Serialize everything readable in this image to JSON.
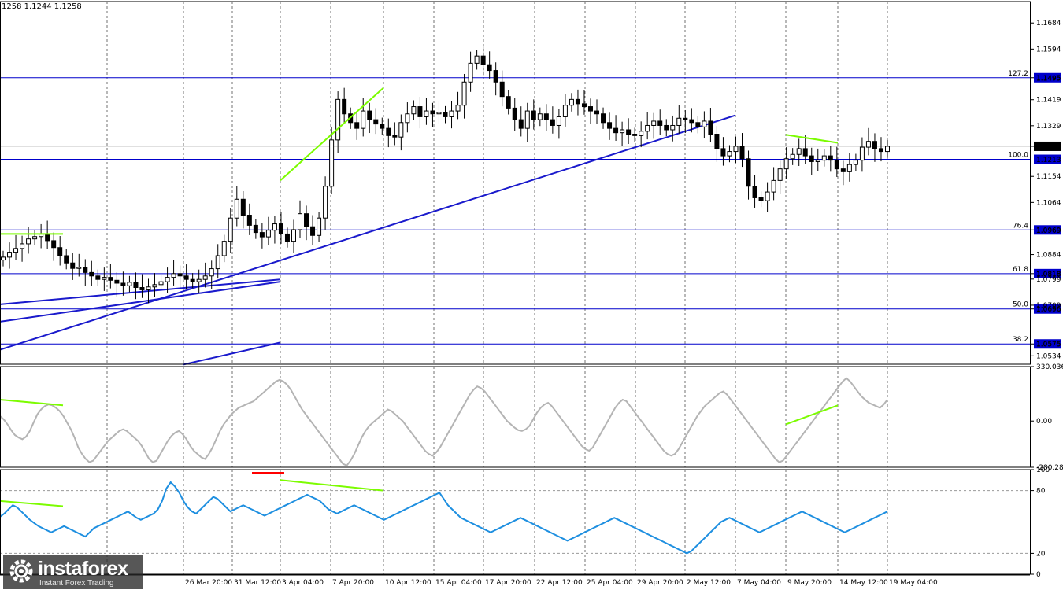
{
  "header": {
    "ohlc_text": "1258 1.1244 1.1258"
  },
  "logo": {
    "name": "instaforex",
    "tagline": "Instant Forex Trading",
    "icon": "gear-logo-icon"
  },
  "colors": {
    "candle": "#000000",
    "fib_level": "#0000cc",
    "trendline": "#1a1acc",
    "divergence_up": "#7cfc00",
    "divergence_bear": "#ff0000",
    "cci": "#b4b4b4",
    "rsi": "#1e8fe0",
    "label_bg": "#0000cc"
  },
  "chart_data": [
    {
      "type": "candlestick",
      "title": "",
      "ylim": [
        1.0505,
        1.1758
      ],
      "current_price": 1.1258,
      "grid": true,
      "price_ticks": [
        1.1684,
        1.1594,
        1.1495,
        1.1419,
        1.1329,
        1.1258,
        1.1154,
        1.1064,
        1.0969,
        1.0884,
        1.0818,
        1.0799,
        1.0709,
        1.0696,
        1.0575,
        1.0534
      ],
      "fib_levels": [
        {
          "label": "127.2",
          "price": 1.1495
        },
        {
          "label": "100.0",
          "price": 1.1213
        },
        {
          "label": "76.4",
          "price": 1.0969
        },
        {
          "label": "61.8",
          "price": 1.0818
        },
        {
          "label": "50.0",
          "price": 1.0696
        },
        {
          "label": "38.2",
          "price": 1.0575
        }
      ],
      "x_labels": [
        "26 Mar 20:00",
        "31 Mar 12:00",
        "3 Apr 04:00",
        "7 Apr 20:00",
        "10 Apr 12:00",
        "15 Apr 04:00",
        "17 Apr 20:00",
        "22 Apr 12:00",
        "25 Apr 04:00",
        "29 Apr 20:00",
        "2 May 12:00",
        "7 May 04:00",
        "9 May 20:00",
        "14 May 12:00",
        "19 May 04:00"
      ],
      "close_series": [
        1.0875,
        1.0892,
        1.0905,
        1.0921,
        1.0938,
        1.0946,
        1.0955,
        1.0932,
        1.0908,
        1.088,
        1.0855,
        1.0836,
        1.084,
        1.0822,
        1.081,
        1.0798,
        1.0805,
        1.0795,
        1.0785,
        1.0776,
        1.0788,
        1.077,
        1.0762,
        1.0772,
        1.078,
        1.079,
        1.0805,
        1.0818,
        1.081,
        1.0798,
        1.079,
        1.0798,
        1.081,
        1.0835,
        1.088,
        1.093,
        1.101,
        1.1075,
        1.102,
        1.0985,
        1.096,
        1.0945,
        1.0968,
        1.099,
        1.0955,
        1.093,
        1.097,
        1.1025,
        1.098,
        1.095,
        1.101,
        1.112,
        1.128,
        1.142,
        1.137,
        1.134,
        1.132,
        1.138,
        1.135,
        1.1335,
        1.132,
        1.1295,
        1.129,
        1.134,
        1.137,
        1.1395,
        1.136,
        1.138,
        1.137,
        1.1375,
        1.136,
        1.138,
        1.14,
        1.148,
        1.1545,
        1.157,
        1.154,
        1.152,
        1.148,
        1.143,
        1.139,
        1.135,
        1.132,
        1.138,
        1.135,
        1.137,
        1.135,
        1.133,
        1.136,
        1.14,
        1.142,
        1.1405,
        1.1395,
        1.138,
        1.137,
        1.134,
        1.132,
        1.1305,
        1.1315,
        1.13,
        1.1295,
        1.131,
        1.133,
        1.1345,
        1.133,
        1.1315,
        1.133,
        1.1355,
        1.135,
        1.134,
        1.1325,
        1.1345,
        1.13,
        1.125,
        1.1225,
        1.124,
        1.1258,
        1.1215,
        1.112,
        1.108,
        1.107,
        1.11,
        1.114,
        1.118,
        1.1215,
        1.123,
        1.125,
        1.1225,
        1.1205,
        1.121,
        1.1225,
        1.121,
        1.118,
        1.117,
        1.1195,
        1.121,
        1.1255,
        1.1275,
        1.125,
        1.124,
        1.1258
      ],
      "trendlines": [
        {
          "p1": [
            "start",
            1.0652
          ],
          "p2": [
            "3 Apr 04:00",
            1.079
          ],
          "color": "#1a1acc"
        },
        {
          "p1": [
            "start",
            1.0712
          ],
          "p2": [
            "3 Apr 04:00",
            1.0798
          ],
          "color": "#1a1acc"
        },
        {
          "p1": [
            "26 Mar 20:00",
            1.0504
          ],
          "p2": [
            "3 Apr 04:00",
            1.058
          ],
          "color": "#1a1acc"
        },
        {
          "p1": [
            "start",
            1.0555
          ],
          "p2": [
            "7 May 04:00",
            1.1365
          ],
          "color": "#1a1acc"
        }
      ],
      "divergence_lines": [
        {
          "p1": [
            "start",
            1.0955
          ],
          "p2": [
            "end of Mar",
            1.0955
          ]
        },
        {
          "p1": [
            "3 Apr 04:00",
            1.114
          ],
          "p2": [
            "10 Apr 12:00",
            1.146
          ]
        },
        {
          "p1": [
            "9 May 20:00",
            1.1298
          ],
          "p2": [
            "14 May 12:00",
            1.127
          ]
        }
      ]
    },
    {
      "type": "line",
      "title": "",
      "ylim": [
        -280.2849,
        330.0361
      ],
      "y_ticks": [
        330.0361,
        0.0,
        -280.2849
      ],
      "series": [
        {
          "values": [
            30,
            10,
            -20,
            -55,
            -85,
            -100,
            -110,
            -95,
            -60,
            -10,
            40,
            70,
            90,
            100,
            95,
            80,
            60,
            30,
            -10,
            -50,
            -100,
            -160,
            -200,
            -230,
            -250,
            -240,
            -210,
            -180,
            -150,
            -120,
            -100,
            -80,
            -60,
            -50,
            -60,
            -80,
            -100,
            -120,
            -150,
            -190,
            -230,
            -250,
            -240,
            -200,
            -160,
            -120,
            -90,
            -70,
            -60,
            -80,
            -110,
            -150,
            -180,
            -200,
            -220,
            -230,
            -200,
            -160,
            -110,
            -60,
            -20,
            10,
            40,
            60,
            80,
            90,
            100,
            110,
            120,
            140,
            160,
            180,
            200,
            220,
            240,
            250,
            240,
            220,
            190,
            150,
            110,
            70,
            40,
            10,
            -20,
            -50,
            -80,
            -110,
            -140,
            -170,
            -200,
            -230,
            -260,
            -270,
            -240,
            -200,
            -150,
            -100,
            -60,
            -30,
            -10,
            10,
            30,
            50,
            70,
            60,
            40,
            20,
            0,
            -30,
            -60,
            -90,
            -120,
            -150,
            -180,
            -200,
            -210,
            -190,
            -160,
            -120,
            -80,
            -40,
            0,
            40,
            80,
            120,
            160,
            190,
            210,
            200,
            180,
            150,
            120,
            90,
            60,
            30,
            0,
            -20,
            -40,
            -55,
            -60,
            -50,
            -30,
            10,
            50,
            80,
            100,
            110,
            90,
            60,
            30,
            0,
            -30,
            -60,
            -90,
            -120,
            -150,
            -170,
            -180,
            -160,
            -120,
            -80,
            -40,
            0,
            40,
            80,
            110,
            130,
            120,
            90,
            60,
            30,
            0,
            -30,
            -60,
            -90,
            -120,
            -150,
            -180,
            -200,
            -210,
            -200,
            -170,
            -130,
            -90,
            -50,
            -10,
            30,
            60,
            90,
            110,
            130,
            150,
            170,
            180,
            160,
            130,
            100,
            70,
            40,
            10,
            -20,
            -50,
            -80,
            -110,
            -140,
            -170,
            -200,
            -230,
            -250,
            -240,
            -210,
            -180,
            -150,
            -120,
            -90,
            -60,
            -30,
            0,
            30,
            60,
            90,
            120,
            150,
            180,
            210,
            240,
            260,
            240,
            210,
            180,
            150,
            130,
            110,
            100,
            90,
            80,
            100,
            130
          ]
        }
      ],
      "divergence_lines": [
        {
          "p1": [
            "start",
            130
          ],
          "p2": [
            "end of Mar",
            95
          ]
        },
        {
          "p1": [
            "9 May 20:00",
            -20
          ],
          "p2": [
            "14 May 12:00",
            95
          ]
        }
      ]
    },
    {
      "type": "line",
      "title": "",
      "ylim": [
        0,
        100
      ],
      "y_ticks": [
        100,
        80,
        20,
        0
      ],
      "levels": [
        80,
        20
      ],
      "series": [
        {
          "values": [
            55,
            58,
            62,
            66,
            64,
            60,
            56,
            52,
            49,
            46,
            44,
            42,
            40,
            42,
            44,
            46,
            44,
            42,
            40,
            38,
            36,
            40,
            44,
            46,
            48,
            50,
            52,
            54,
            56,
            58,
            60,
            57,
            54,
            52,
            54,
            56,
            58,
            62,
            70,
            82,
            88,
            84,
            78,
            70,
            64,
            60,
            58,
            62,
            66,
            70,
            74,
            72,
            68,
            64,
            60,
            62,
            64,
            66,
            64,
            62,
            60,
            58,
            56,
            58,
            60,
            62,
            64,
            66,
            68,
            70,
            72,
            74,
            76,
            74,
            72,
            70,
            66,
            62,
            60,
            58,
            60,
            62,
            64,
            66,
            64,
            62,
            60,
            58,
            56,
            54,
            52,
            54,
            56,
            58,
            60,
            62,
            64,
            66,
            68,
            70,
            72,
            74,
            76,
            78,
            72,
            66,
            62,
            58,
            54,
            52,
            50,
            48,
            46,
            44,
            42,
            40,
            42,
            44,
            46,
            48,
            50,
            52,
            54,
            52,
            50,
            48,
            46,
            44,
            42,
            40,
            38,
            36,
            34,
            32,
            34,
            36,
            38,
            40,
            42,
            44,
            46,
            48,
            50,
            52,
            54,
            52,
            50,
            48,
            46,
            44,
            42,
            40,
            38,
            36,
            34,
            32,
            30,
            28,
            26,
            24,
            22,
            20,
            22,
            26,
            30,
            34,
            38,
            42,
            46,
            50,
            52,
            54,
            52,
            50,
            48,
            46,
            44,
            42,
            40,
            42,
            44,
            46,
            48,
            50,
            52,
            54,
            56,
            58,
            60,
            58,
            56,
            54,
            52,
            50,
            48,
            46,
            44,
            42,
            40,
            42,
            44,
            46,
            48,
            50,
            52,
            54,
            56,
            58,
            60
          ]
        }
      ],
      "divergence_lines": [
        {
          "p1": [
            "start",
            70
          ],
          "p2": [
            "end of Mar",
            65
          ]
        },
        {
          "p1": [
            "3 Apr 04:00",
            90
          ],
          "p2": [
            "10 Apr 12:00",
            80
          ]
        }
      ],
      "marker_line": {
        "p1": [
          "31 Mar 12:00",
          97
        ],
        "p2": [
          "3 Apr 04:00",
          97
        ]
      }
    }
  ]
}
